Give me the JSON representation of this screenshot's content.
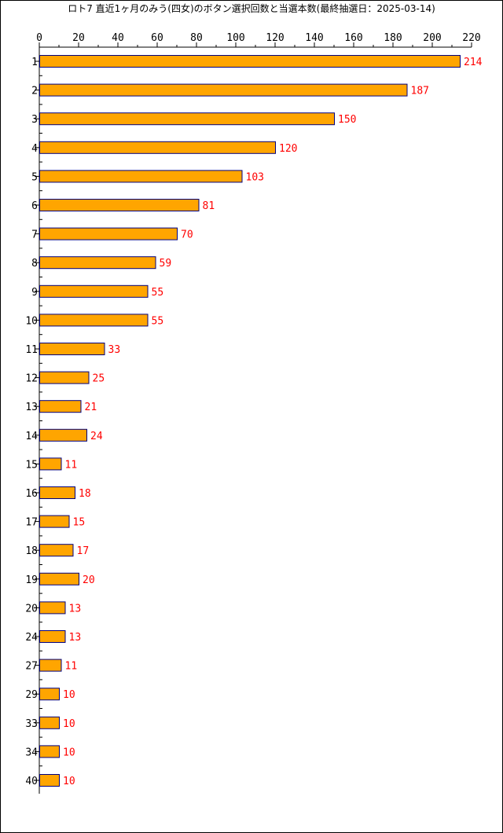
{
  "chart_data": {
    "type": "bar",
    "orientation": "horizontal",
    "title": "ロト7 直近1ヶ月のみう(四女)のボタン選択回数と当選本数(最終抽選日：2025-03-14)",
    "xlabel": "",
    "ylabel": "",
    "xlim": [
      0,
      220
    ],
    "xticks": [
      0,
      20,
      40,
      60,
      80,
      100,
      120,
      140,
      160,
      180,
      200,
      220
    ],
    "grid": false,
    "categories": [
      "1",
      "2",
      "3",
      "4",
      "5",
      "6",
      "7",
      "8",
      "9",
      "10",
      "11",
      "12",
      "13",
      "14",
      "15",
      "16",
      "17",
      "18",
      "19",
      "20",
      "24",
      "27",
      "29",
      "33",
      "34",
      "40"
    ],
    "values": [
      214,
      187,
      150,
      120,
      103,
      81,
      70,
      59,
      55,
      55,
      33,
      25,
      21,
      24,
      11,
      18,
      15,
      17,
      20,
      13,
      13,
      11,
      10,
      10,
      10,
      10
    ],
    "colors": {
      "bar_fill": "#ffa500",
      "bar_stroke": "#000080",
      "data_label": "#ff0000",
      "axis": "#000000"
    }
  }
}
